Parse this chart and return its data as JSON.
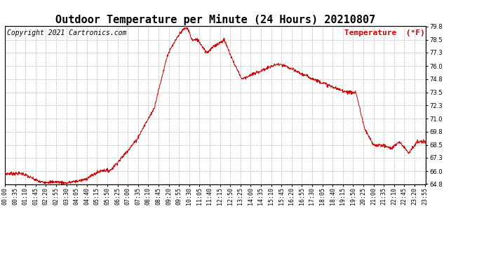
{
  "title": "Outdoor Temperature per Minute (24 Hours) 20210807",
  "copyright_text": "Copyright 2021 Cartronics.com",
  "legend_label": "Temperature  (°F)",
  "line_color": "#cc0000",
  "background_color": "#ffffff",
  "grid_color": "#aaaaaa",
  "ylim": [
    64.8,
    79.8
  ],
  "yticks": [
    64.8,
    66.0,
    67.3,
    68.5,
    69.8,
    71.0,
    72.3,
    73.5,
    74.8,
    76.0,
    77.3,
    78.5,
    79.8
  ],
  "title_fontsize": 11,
  "tick_fontsize": 6,
  "copyright_fontsize": 7,
  "legend_fontsize": 8
}
